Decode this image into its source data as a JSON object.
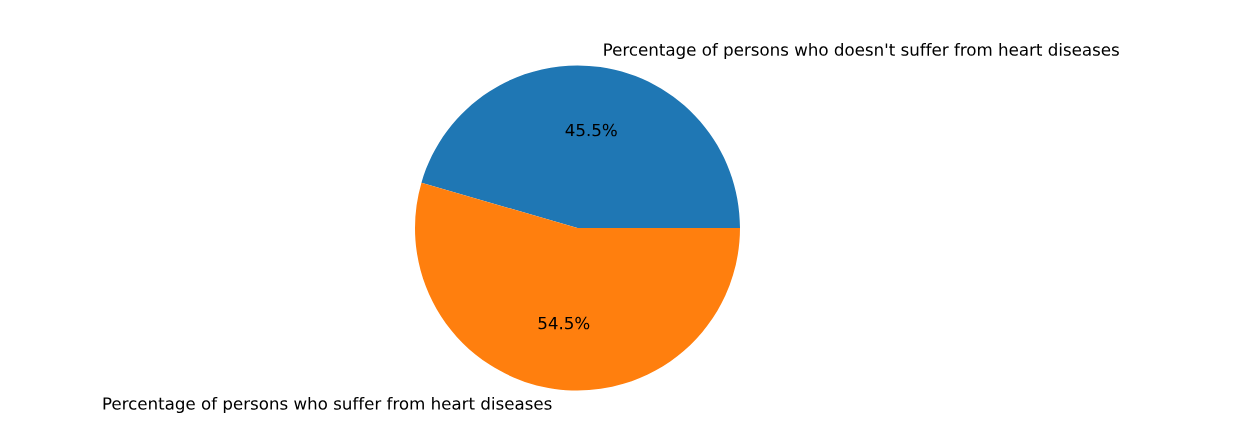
{
  "chart_data": {
    "type": "pie",
    "categories": [
      "Percentage of persons who doesn't suffer from heart diseases",
      "Percentage of persons who suffer from heart diseases"
    ],
    "values": [
      45.5,
      54.5
    ],
    "colors": [
      "#1f77b4",
      "#ff7f0e"
    ],
    "value_labels": [
      "45.5%",
      "54.5%"
    ]
  }
}
